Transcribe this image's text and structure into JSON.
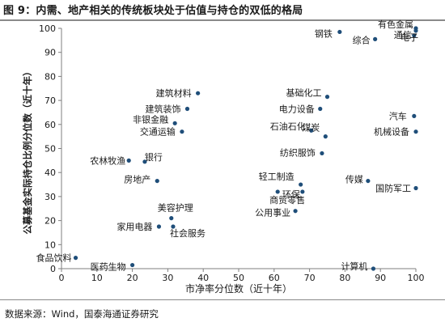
{
  "header": {
    "title": "图 9：内需、地产相关的传统板块处于估值与持仓的双低的格局"
  },
  "footer": {
    "source": "数据来源：Wind，国泰海通证券研究"
  },
  "colors": {
    "point": "#1f4e79",
    "axis": "#7f7f7f",
    "text": "#1a1a1a"
  },
  "chart_data": {
    "type": "scatter",
    "title": "",
    "xlabel": "市净率分位数（近十年）",
    "ylabel": "公募基金实际持仓比例分位数（近十年）",
    "xlim": [
      0,
      100
    ],
    "ylim": [
      0,
      100
    ],
    "xticks": [
      "0",
      "10",
      "20",
      "30",
      "40",
      "50",
      "60",
      "70",
      "80",
      "90",
      "100"
    ],
    "yticks": [
      "0",
      "10",
      "20",
      "30",
      "40",
      "50",
      "60",
      "70",
      "80",
      "90",
      "100"
    ],
    "grid": false,
    "legend": "none",
    "points": [
      {
        "label": "钢铁",
        "x": 78.5,
        "y": 98.5
      },
      {
        "label": "有色金属",
        "x": 100,
        "y": 100
      },
      {
        "label": "综合",
        "x": 88.5,
        "y": 95.5
      },
      {
        "label": "通信",
        "x": 99.5,
        "y": 97
      },
      {
        "label": "电子",
        "x": 100,
        "y": 99
      },
      {
        "label": "建筑材料",
        "x": 38.5,
        "y": 73
      },
      {
        "label": "建筑装饰",
        "x": 35.5,
        "y": 66.5
      },
      {
        "label": "非银金融",
        "x": 32,
        "y": 60.5
      },
      {
        "label": "交通运输",
        "x": 34,
        "y": 57
      },
      {
        "label": "基础化工",
        "x": 75,
        "y": 71.5
      },
      {
        "label": "电力设备",
        "x": 73,
        "y": 66.5
      },
      {
        "label": "汽车",
        "x": 99.5,
        "y": 63.5
      },
      {
        "label": "石油石化",
        "x": 70.5,
        "y": 57.5
      },
      {
        "label": "机械设备",
        "x": 100,
        "y": 57
      },
      {
        "label": "煤炭",
        "x": 74.5,
        "y": 55
      },
      {
        "label": "纺织服饰",
        "x": 73.5,
        "y": 48
      },
      {
        "label": "银行",
        "x": 23.5,
        "y": 44.5
      },
      {
        "label": "农林牧渔",
        "x": 19,
        "y": 45
      },
      {
        "label": "房地产",
        "x": 27,
        "y": 36.5
      },
      {
        "label": "轻工制造",
        "x": 67.5,
        "y": 35
      },
      {
        "label": "环保",
        "x": 68,
        "y": 32
      },
      {
        "label": "传媒",
        "x": 86.5,
        "y": 36.5
      },
      {
        "label": "国防军工",
        "x": 100,
        "y": 33.5
      },
      {
        "label": "商贸零售",
        "x": 61,
        "y": 32
      },
      {
        "label": "公用事业",
        "x": 66,
        "y": 24
      },
      {
        "label": "美容护理",
        "x": 31,
        "y": 21
      },
      {
        "label": "家用电器",
        "x": 27.5,
        "y": 17.5
      },
      {
        "label": "社会服务",
        "x": 31.5,
        "y": 17.5
      },
      {
        "label": "食品饮料",
        "x": 4,
        "y": 4.5
      },
      {
        "label": "医药生物",
        "x": 20,
        "y": 1.5
      },
      {
        "label": "计算机",
        "x": 88,
        "y": 0
      }
    ]
  }
}
